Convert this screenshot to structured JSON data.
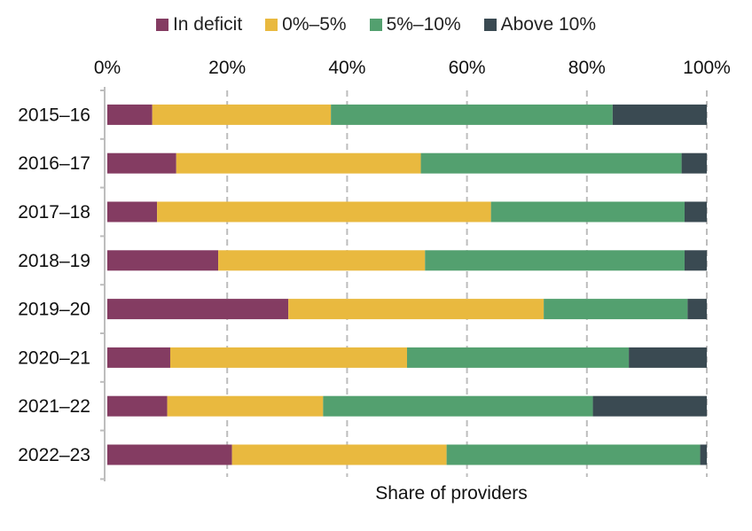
{
  "chart_data": {
    "type": "bar",
    "orientation": "horizontal",
    "stacked": true,
    "categories": [
      "2015–16",
      "2016–17",
      "2017–18",
      "2018–19",
      "2019–20",
      "2020–21",
      "2021–22",
      "2022–23"
    ],
    "series": [
      {
        "name": "In deficit",
        "color": "#843c62",
        "values": [
          7.5,
          11.5,
          8.3,
          18.5,
          30.2,
          10.5,
          10.0,
          20.8
        ]
      },
      {
        "name": "0%–5%",
        "color": "#e9b93f",
        "values": [
          29.8,
          40.8,
          55.7,
          34.5,
          42.6,
          39.5,
          26.0,
          35.8
        ]
      },
      {
        "name": "5%–10%",
        "color": "#53a06f",
        "values": [
          47.0,
          43.5,
          32.3,
          43.3,
          24.0,
          37.0,
          45.0,
          42.3
        ]
      },
      {
        "name": "Above 10%",
        "color": "#3a4a52",
        "values": [
          15.7,
          4.2,
          3.7,
          3.7,
          3.2,
          13.0,
          19.0,
          1.1
        ]
      }
    ],
    "xlim": [
      0,
      100
    ],
    "x_ticks": [
      "0%",
      "20%",
      "40%",
      "60%",
      "80%",
      "100%"
    ],
    "x_tick_values": [
      0,
      20,
      40,
      60,
      80,
      100
    ],
    "xlabel": "Share of providers",
    "ylabel": "",
    "grid": "vertical-dashed",
    "legend_position": "top"
  }
}
